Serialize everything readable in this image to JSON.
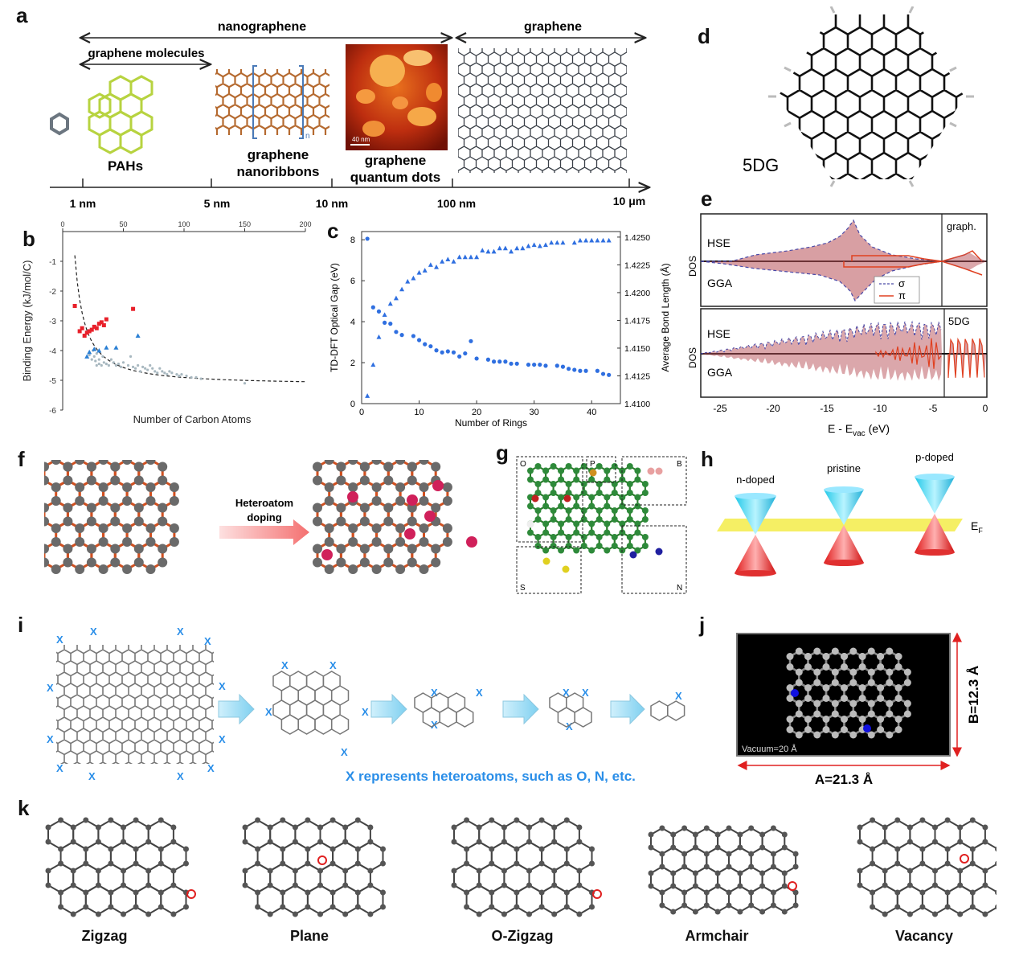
{
  "panels": {
    "a": {
      "label": "a",
      "scale_top": [
        "nanographene",
        "graphene"
      ],
      "scale_sub": "graphene molecules",
      "items": [
        "PAHs",
        "graphene\nnanoribbons",
        "graphene\nquantum dots"
      ],
      "item_lines": [
        [
          "PAHs"
        ],
        [
          "graphene",
          "nanoribbons"
        ],
        [
          "graphene",
          "quantum dots"
        ]
      ],
      "axis_ticks": [
        "1 nm",
        "5 nm",
        "10 nm",
        "100 nm",
        "10 μm"
      ],
      "afm_scale": "40 nm",
      "gnr_subscript": "n"
    },
    "b": {
      "label": "b"
    },
    "c": {
      "label": "c"
    },
    "d": {
      "label": "d",
      "tag": "5DG"
    },
    "e": {
      "label": "e",
      "top": {
        "ylabel": "DOS",
        "hse": "HSE",
        "gga": "GGA",
        "side": "graph.",
        "legend": [
          "σ",
          "π"
        ]
      },
      "bottom": {
        "ylabel": "DOS",
        "hse": "HSE",
        "gga": "GGA",
        "side": "5DG"
      },
      "xlabel": "E - E",
      "xlabel_sub": "vac",
      "xlabel_unit": " (eV)",
      "xticks": [
        "-25",
        "-20",
        "-15",
        "-10",
        "-5",
        "0"
      ]
    },
    "f": {
      "label": "f",
      "arrow_text": [
        "Heteroatom",
        "doping"
      ]
    },
    "g": {
      "label": "g",
      "boxes": [
        "O",
        "P",
        "B",
        "S",
        "N"
      ]
    },
    "h": {
      "label": "h",
      "cones": [
        "n-doped",
        "pristine",
        "p-doped"
      ],
      "ef": "E",
      "ef_sub": "F"
    },
    "i": {
      "label": "i",
      "x": "X",
      "caption": "X represents heteroatoms, such as O, N, etc."
    },
    "j": {
      "label": "j",
      "vacuum": "Vacuum=20  Å",
      "a_dim": "A=21.3 Å",
      "b_dim": "B=12.3 Å"
    },
    "k": {
      "label": "k",
      "names": [
        "Zigzag",
        "Plane",
        "O-Zigzag",
        "Armchair",
        "Vacancy"
      ]
    }
  },
  "chart_data": [
    {
      "panel": "b",
      "type": "scatter",
      "xlabel": "Number of Carbon Atoms",
      "ylabel": "Binding Energy (kJ/mol/C)",
      "xlim": [
        0,
        200
      ],
      "ylim": [
        -6,
        0
      ],
      "xticks": [
        "0",
        "50",
        "100",
        "150",
        "200"
      ],
      "yticks": [
        "-1",
        "-2",
        "-3",
        "-4",
        "-5",
        "-6"
      ],
      "x_axis_position": "top",
      "series": [
        {
          "color": "#e8202a",
          "x": [
            10,
            14,
            16,
            18,
            20,
            22,
            24,
            26,
            28,
            30,
            32,
            34,
            36,
            58
          ],
          "y": [
            -2.5,
            -3.35,
            -3.25,
            -3.5,
            -3.4,
            -3.35,
            -3.3,
            -3.2,
            -3.25,
            -3.1,
            -3.05,
            -3.15,
            -2.95,
            -2.6
          ]
        },
        {
          "color": "#2a7fd4",
          "x": [
            20,
            22,
            26,
            30,
            36,
            44,
            62
          ],
          "y": [
            -4.2,
            -4.05,
            -3.95,
            -4.0,
            -3.9,
            -3.9,
            -3.5
          ]
        },
        {
          "color": "#a8b8c0",
          "x": [
            22,
            24,
            25,
            26,
            27,
            28,
            28,
            30,
            30,
            32,
            33,
            34,
            36,
            38,
            40,
            42,
            44,
            46,
            48,
            50,
            54,
            56,
            58,
            60,
            62,
            64,
            66,
            68,
            70,
            72,
            74,
            76,
            78,
            80,
            82,
            84,
            86,
            88,
            90,
            94,
            96,
            98,
            102,
            106,
            110,
            114,
            150
          ],
          "y": [
            -4.15,
            -4.3,
            -4.0,
            -4.2,
            -4.35,
            -4.1,
            -4.5,
            -4.3,
            -4.45,
            -4.5,
            -4.2,
            -4.4,
            -4.45,
            -4.5,
            -4.3,
            -4.4,
            -4.5,
            -4.45,
            -4.55,
            -4.4,
            -4.5,
            -4.2,
            -4.55,
            -4.6,
            -4.5,
            -4.7,
            -4.55,
            -4.6,
            -4.65,
            -4.5,
            -4.6,
            -4.7,
            -4.75,
            -4.6,
            -4.7,
            -4.75,
            -4.8,
            -4.7,
            -4.75,
            -4.8,
            -4.85,
            -4.8,
            -4.85,
            -4.9,
            -4.9,
            -4.95,
            -5.1
          ]
        }
      ],
      "fit_curve": "dashed, from -0.8 at x=10 decaying to -5.15 at x=200"
    },
    {
      "panel": "c",
      "type": "scatter",
      "xlabel": "Number of Rings",
      "ylabel": "TD-DFT Optical Gap (eV)",
      "y2label": "Average Bond Length (Å)",
      "xlim": [
        0,
        45
      ],
      "ylim": [
        0,
        8.4
      ],
      "y2lim": [
        1.41,
        1.4255
      ],
      "xticks": [
        "0",
        "10",
        "20",
        "30",
        "40"
      ],
      "yticks": [
        "0",
        "2",
        "4",
        "6",
        "8"
      ],
      "y2ticks": [
        "1.4100",
        "1.4125",
        "1.4150",
        "1.4175",
        "1.4200",
        "1.4225",
        "1.4250"
      ],
      "series": [
        {
          "marker": "circle",
          "color": "#2f6fe0",
          "x": [
            1,
            2,
            3,
            4,
            5,
            6,
            7,
            9,
            10,
            11,
            12,
            13,
            14,
            15,
            16,
            17,
            18,
            19,
            20,
            22,
            23,
            24,
            25,
            26,
            27,
            29,
            30,
            31,
            32,
            34,
            35,
            36,
            37,
            38,
            39,
            41,
            42,
            43
          ],
          "y": [
            8.05,
            4.7,
            4.5,
            3.95,
            3.9,
            3.5,
            3.35,
            3.3,
            3.1,
            2.9,
            2.8,
            2.6,
            2.5,
            2.55,
            2.5,
            2.3,
            2.45,
            3.05,
            2.2,
            2.15,
            2.05,
            2.05,
            2.05,
            1.95,
            1.95,
            1.9,
            1.9,
            1.9,
            1.85,
            1.85,
            1.8,
            1.7,
            1.65,
            1.6,
            1.6,
            1.6,
            1.45,
            1.4
          ]
        },
        {
          "marker": "triangle",
          "color": "#2f6fe0",
          "x": [
            1,
            2,
            3,
            4,
            5,
            6,
            7,
            8,
            9,
            10,
            11,
            12,
            13,
            14,
            15,
            16,
            17,
            18,
            19,
            20,
            21,
            22,
            23,
            24,
            25,
            26,
            27,
            28,
            29,
            30,
            31,
            32,
            33,
            34,
            35,
            37,
            38,
            39,
            40,
            41,
            42,
            43
          ],
          "y2": [
            1.4107,
            1.4135,
            1.416,
            1.418,
            1.419,
            1.4195,
            1.4203,
            1.421,
            1.4213,
            1.4218,
            1.422,
            1.4225,
            1.4223,
            1.4228,
            1.423,
            1.4228,
            1.4232,
            1.4232,
            1.4232,
            1.4232,
            1.4238,
            1.4237,
            1.4237,
            1.424,
            1.424,
            1.4237,
            1.424,
            1.424,
            1.4242,
            1.4243,
            1.4242,
            1.4243,
            1.4245,
            1.4245,
            1.4245,
            1.4245,
            1.4247,
            1.4247,
            1.4247,
            1.4247,
            1.4247,
            1.4247
          ]
        }
      ]
    }
  ]
}
